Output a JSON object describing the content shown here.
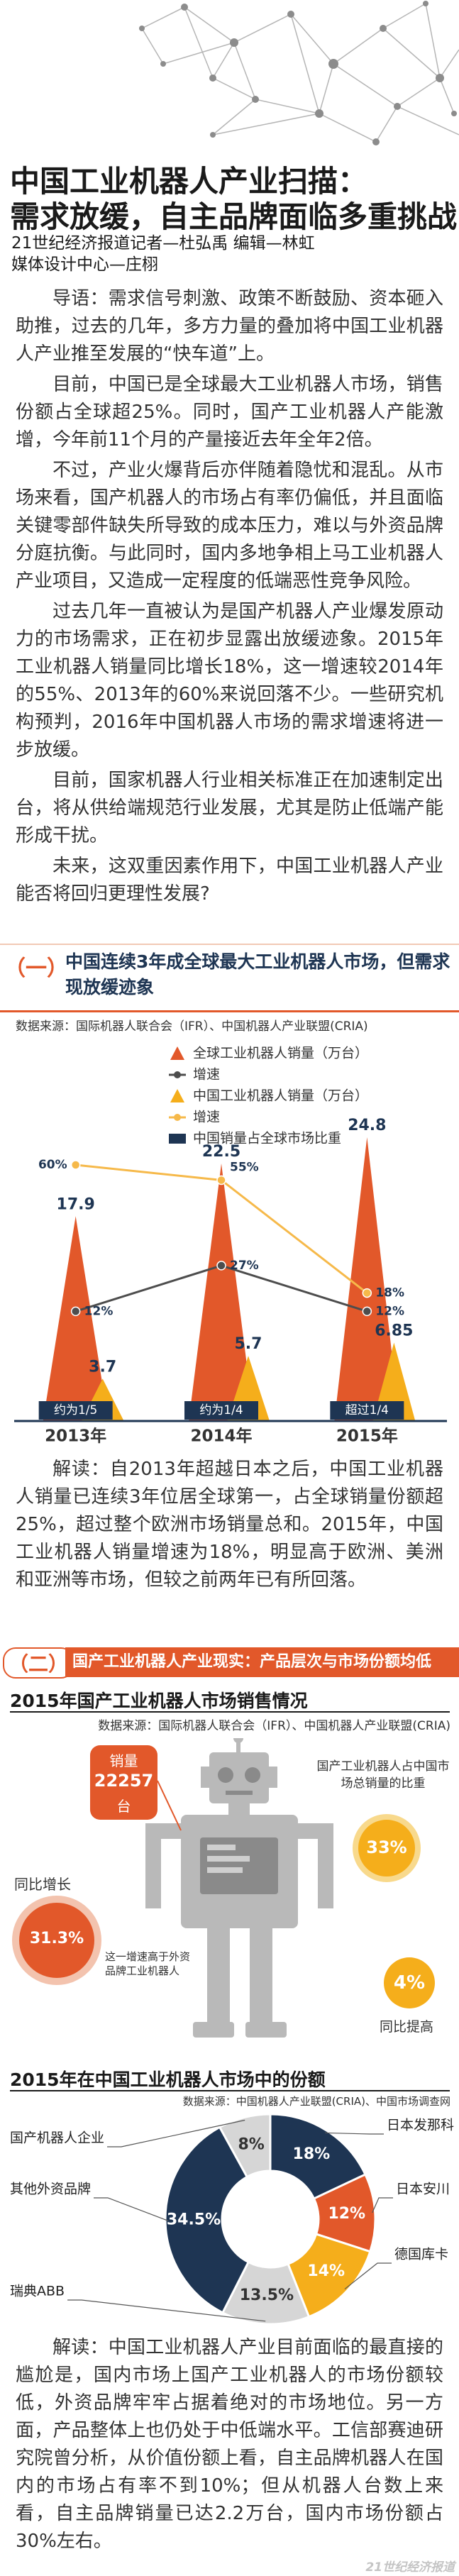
{
  "header": {
    "title_line1": "中国工业机器人产业扫描：",
    "title_line2": "需求放缓，自主品牌面临多重挑战",
    "byline": "21世纪经济报道记者—杜弘禹 编辑—林虹",
    "design": "媒体设计中心—庄栩"
  },
  "intro": [
    "导语：需求信号刺激、政策不断鼓励、资本砸入助推，过去的几年，多方力量的叠加将中国工业机器人产业推至发展的“快车道”上。",
    "目前，中国已是全球最大工业机器人市场，销售份额占全球超25%。同时，国产工业机器人产能激增，今年前11个月的产量接近去年全年2倍。",
    "不过，产业火爆背后亦伴随着隐忧和混乱。从市场来看，国产机器人的市场占有率仍偏低，并且面临关键零部件缺失所导致的成本压力，难以与外资品牌分庭抗衡。与此同时，国内多地争相上马工业机器人产业项目，又造成一定程度的低端恶性竞争风险。",
    "过去几年一直被认为是国产机器人产业爆发原动力的市场需求，正在初步显露出放缓迹象。2015年工业机器人销量同比增长18%，这一增速较2014年的55%、2013年的60%来说回落不少。一些研究机构预判，2016年中国机器人市场的需求增速将进一步放缓。",
    "目前，国家机器人行业相关标准正在加速制定出台，将从供给端规范行业发展，尤其是防止低端产能形成干扰。",
    "未来，这双重因素作用下，中国工业机器人产业能否将回归更理性发展?"
  ],
  "section1": {
    "number": "（一）",
    "heading": "中国连续3年成全球最大工业机器人市场，但需求现放缓迹象",
    "source": "数据来源：国际机器人联合会（IFR）、中国机器人产业联盟(CRIA)",
    "note": "解读：自2013年超越日本之后，中国工业机器人销量已连续3年位居全球第一，占全球销量份额超25%，超过整个欧洲市场销量总和。2015年，中国工业机器人销量增速为18%，明显高于欧洲、美洲和亚洲等市场，但较之前两年已有所回落。"
  },
  "section2": {
    "number": "（二）",
    "heading": "国产工业机器人产业现实：产品层次与市场份额均低",
    "subtitle": "2015年国产工业机器人市场销售情况",
    "source": "数据来源：国际机器人联合会（IFR）、中国机器人产业联盟(CRIA)",
    "robot": {
      "sales_label": "销量",
      "sales": "22257",
      "sales_unit": "台",
      "share_text": "国产工业机器人占中国市场总销量的比重",
      "share": "33%",
      "growth_label": "同比增长",
      "growth": "31.3%",
      "growth_note": "这一增速高于外资品牌工业机器人",
      "share_change": "4%",
      "share_change_label": "同比提高"
    },
    "note": "解读：中国工业机器人产业目前面临的最直接的尴尬是，国内市场上国产工业机器人的市场份额较低，外资品牌牢牢占据着绝对的市场地位。另一方面，产品整体上也仍处于中低端水平。工信部赛迪研究院曾分析，从价值份额上看，自主品牌机器人在国内的市场占有率不到10%；但从机器人台数上来看，自主品牌销量已达2.2万台，国内市场份额占30%左右。"
  },
  "chart_data": [
    {
      "type": "triangle-line",
      "categories": [
        "2013年",
        "2014年",
        "2015年"
      ],
      "series": [
        {
          "name": "全球工业机器人销量（万台）",
          "color": "#e2582a",
          "values": [
            17.9,
            22.5,
            24.8
          ]
        },
        {
          "name": "增速",
          "color": "#4d4d4d",
          "axis": "y2",
          "values": [
            12,
            27,
            12
          ],
          "value_labels": [
            "12%",
            "27%",
            "12%"
          ]
        },
        {
          "name": "中国工业机器人销量（万台）",
          "color": "#f5ae1b",
          "values": [
            3.7,
            5.7,
            6.85
          ]
        },
        {
          "name": "增速",
          "color": "#f6b94a",
          "axis": "y2",
          "values": [
            60,
            55,
            18
          ],
          "value_labels": [
            "60%",
            "55%",
            "18%"
          ]
        },
        {
          "name": "中国销量占全球市场比重",
          "color": "#1e3553",
          "labels": [
            "约为1/5",
            "约为1/4",
            "超过1/4"
          ]
        }
      ]
    },
    {
      "type": "donut",
      "title": "2015年在中国工业机器人市场中的份额",
      "source": "数据来源：中国机器人产业联盟(CRIA)、中国市场调查网",
      "categories": [
        "日本发那科",
        "日本安川",
        "德国库卡",
        "瑞典ABB",
        "其他外资品牌",
        "国产机器人企业"
      ],
      "values": [
        18,
        12,
        14,
        13.5,
        34.5,
        8
      ],
      "value_labels": [
        "18%",
        "12%",
        "14%",
        "13.5%",
        "34.5%",
        "8%"
      ],
      "colors": [
        "#1e3553",
        "#e2582a",
        "#f5ae1b",
        "#d6d6d6",
        "#1e3553",
        "#d6d6d6"
      ]
    }
  ],
  "watermark": "21世纪经济报道"
}
